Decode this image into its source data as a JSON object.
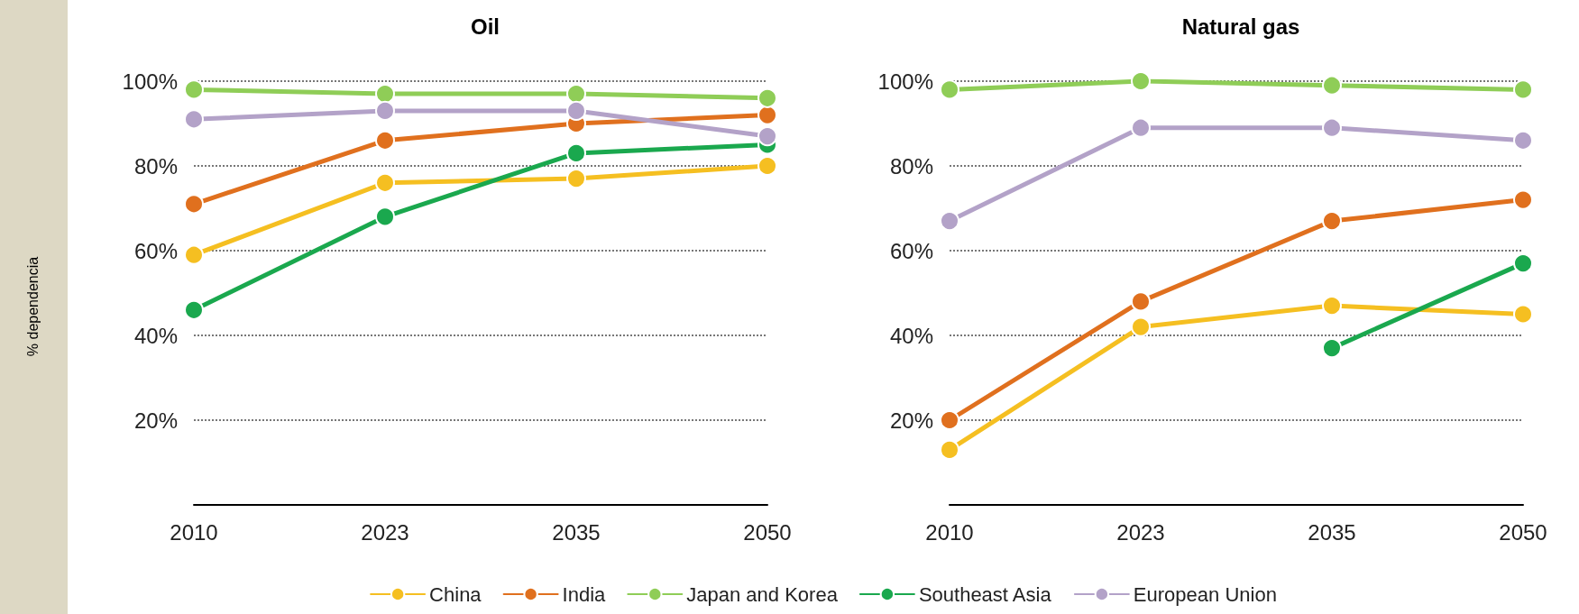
{
  "chart_data": [
    {
      "type": "line",
      "title": "Oil",
      "ylabel": "% dependencia",
      "categories": [
        "2010",
        "2023",
        "2035",
        "2050"
      ],
      "ylim": [
        0,
        100
      ],
      "yticks": [
        {
          "value": 20,
          "label": "20%"
        },
        {
          "value": 40,
          "label": "40%"
        },
        {
          "value": 60,
          "label": "60%"
        },
        {
          "value": 80,
          "label": "80%"
        },
        {
          "value": 100,
          "label": "100%"
        }
      ],
      "grid": "y",
      "marker": "circle",
      "legend": "bottom",
      "series": [
        {
          "name": "China",
          "color": "#f5bf21",
          "values": [
            59,
            76,
            77,
            80
          ]
        },
        {
          "name": "India",
          "color": "#e0701e",
          "values": [
            71,
            86,
            90,
            92
          ]
        },
        {
          "name": "Japan and Korea",
          "color": "#8fcd57",
          "values": [
            98,
            97,
            97,
            96
          ]
        },
        {
          "name": "Southeast Asia",
          "color": "#1aa84e",
          "values": [
            46,
            68,
            83,
            85
          ]
        },
        {
          "name": "European Union",
          "color": "#b3a2c8",
          "values": [
            91,
            93,
            93,
            87
          ]
        }
      ]
    },
    {
      "type": "line",
      "title": "Natural gas",
      "categories": [
        "2010",
        "2023",
        "2035",
        "2050"
      ],
      "ylim": [
        0,
        100
      ],
      "yticks": [
        {
          "value": 20,
          "label": "20%"
        },
        {
          "value": 40,
          "label": "40%"
        },
        {
          "value": 60,
          "label": "60%"
        },
        {
          "value": 80,
          "label": "80%"
        },
        {
          "value": 100,
          "label": "100%"
        }
      ],
      "grid": "y",
      "marker": "circle",
      "series": [
        {
          "name": "China",
          "color": "#f5bf21",
          "values": [
            13,
            42,
            47,
            45
          ]
        },
        {
          "name": "India",
          "color": "#e0701e",
          "values": [
            20,
            48,
            67,
            72
          ]
        },
        {
          "name": "Japan and Korea",
          "color": "#8fcd57",
          "values": [
            98,
            100,
            99,
            98
          ]
        },
        {
          "name": "Southeast Asia",
          "color": "#1aa84e",
          "values": [
            null,
            null,
            37,
            57
          ]
        },
        {
          "name": "European Union",
          "color": "#b3a2c8",
          "values": [
            67,
            89,
            89,
            86
          ]
        }
      ]
    }
  ]
}
